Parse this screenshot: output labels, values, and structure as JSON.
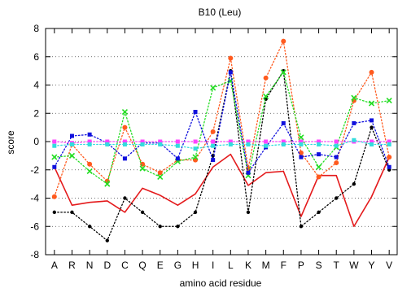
{
  "chart_data": {
    "type": "line",
    "title": "B10 (Leu)",
    "xlabel": "amino acid residue",
    "ylabel": "score",
    "ylim": [
      -8,
      8
    ],
    "yticks": [
      -8,
      -6,
      -4,
      -2,
      0,
      2,
      4,
      6,
      8
    ],
    "grid": "horizontal dotted",
    "categories": [
      "A",
      "R",
      "N",
      "D",
      "C",
      "Q",
      "E",
      "G",
      "H",
      "I",
      "L",
      "K",
      "M",
      "F",
      "P",
      "S",
      "T",
      "W",
      "Y",
      "V"
    ],
    "series": [
      {
        "color": "#e41a1c",
        "line": "solid",
        "marker": "none",
        "values": [
          -1.8,
          -4.5,
          -4.3,
          -4.2,
          -5.0,
          -3.3,
          -3.8,
          -4.5,
          -3.7,
          -1.8,
          -0.9,
          -3.1,
          -2.2,
          -2.1,
          -5.3,
          -2.4,
          -2.4,
          -6.0,
          -3.9,
          -1.1
        ]
      },
      {
        "color": "#000000",
        "line": "dotted",
        "marker": "circle",
        "values": [
          -5.0,
          -5.0,
          -6.0,
          -7.0,
          -4.0,
          -5.0,
          -6.0,
          -6.0,
          -5.0,
          -1.0,
          5.0,
          -5.0,
          3.0,
          5.0,
          -6.0,
          -5.0,
          -4.0,
          -3.0,
          1.0,
          -2.0
        ]
      },
      {
        "color": "#ff5a1e",
        "line": "dotted",
        "marker": "circle",
        "values": [
          -3.9,
          -0.2,
          -1.6,
          -2.8,
          1.0,
          -1.6,
          -2.2,
          -1.3,
          -1.3,
          0.7,
          5.9,
          -1.9,
          4.5,
          7.1,
          -0.8,
          -2.5,
          -1.5,
          2.9,
          4.9,
          -1.1
        ]
      },
      {
        "color": "#22dd22",
        "line": "dotted",
        "marker": "x",
        "values": [
          -1.1,
          -1.0,
          -2.1,
          -3.0,
          2.1,
          -1.9,
          -2.5,
          -1.4,
          -1.1,
          3.8,
          4.3,
          -2.4,
          3.2,
          4.9,
          0.3,
          -1.8,
          -0.4,
          3.1,
          2.7,
          2.9
        ]
      },
      {
        "color": "#1010dd",
        "line": "dotted",
        "marker": "square",
        "values": [
          -1.8,
          0.4,
          0.5,
          -0.1,
          -1.2,
          -0.1,
          -0.1,
          -1.2,
          2.1,
          -1.3,
          4.9,
          -2.2,
          -0.4,
          1.3,
          -1.1,
          -0.9,
          -1.1,
          1.3,
          1.5,
          -1.8
        ]
      },
      {
        "color": "#ff44ff",
        "line": "dotted",
        "marker": "square",
        "values": [
          0.0,
          -0.1,
          0.0,
          0.0,
          0.0,
          0.0,
          0.0,
          0.0,
          0.0,
          0.0,
          0.0,
          0.0,
          0.0,
          0.0,
          0.0,
          0.0,
          0.0,
          0.0,
          0.0,
          0.0
        ]
      },
      {
        "color": "#33dddd",
        "line": "dotted",
        "marker": "square",
        "values": [
          -0.3,
          -0.2,
          -0.2,
          -0.2,
          -0.2,
          -0.2,
          -0.2,
          -0.3,
          -0.5,
          -0.3,
          -0.2,
          -0.2,
          -0.3,
          -0.2,
          -0.2,
          -0.2,
          -0.3,
          0.1,
          -0.2,
          -0.2
        ]
      }
    ]
  }
}
